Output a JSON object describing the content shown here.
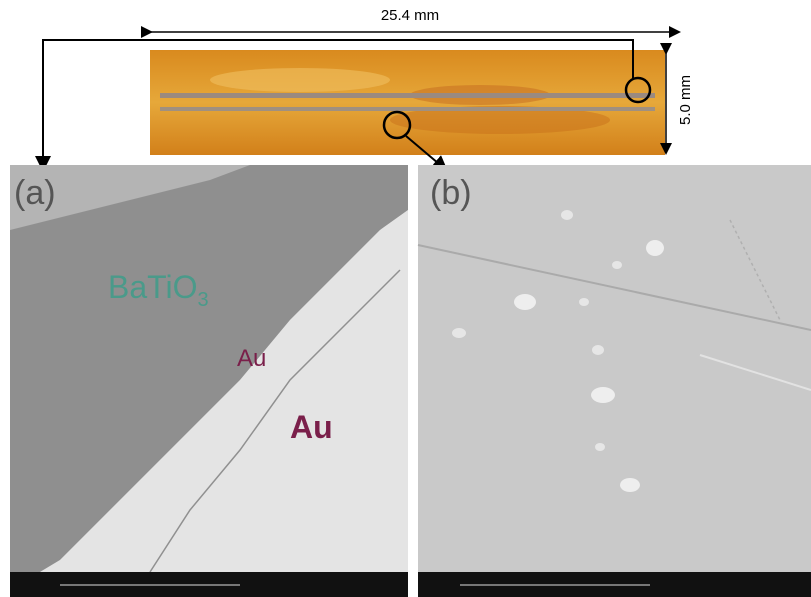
{
  "header": {
    "length_label": "25.4 mm",
    "width_label": "5.0 mm"
  },
  "panels": [
    {
      "label": "(a)",
      "material": {
        "text": "BaTiO",
        "subscript": "3"
      },
      "layers": [
        "Au",
        "Au"
      ]
    },
    {
      "label": "(b)"
    }
  ]
}
